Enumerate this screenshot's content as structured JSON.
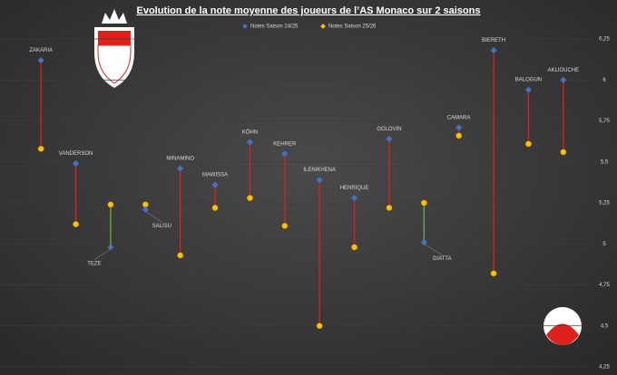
{
  "chart_data": {
    "type": "dumbbell",
    "title": "Evolution de la note moyenne des joueurs de l’AS Monaco sur 2 saisons",
    "categories": [
      "ZAKARIA",
      "VANDERSON",
      "TEZE",
      "SALISU",
      "MINAMINO",
      "MAWISSA",
      "KÖHN",
      "KEHRER",
      "ILENIKHENA",
      "HENRIQUE",
      "GOLOVIN",
      "DIATTA",
      "CAMARA",
      "BIERETH",
      "BALOGUN",
      "AKLIOUCHE"
    ],
    "series": [
      {
        "name": "Notes Saison 24/25",
        "color": "#4472c4",
        "values": [
          6.12,
          5.49,
          4.98,
          5.21,
          5.46,
          5.36,
          5.62,
          5.55,
          5.39,
          5.28,
          5.64,
          5.01,
          5.71,
          6.18,
          5.94,
          6.0
        ]
      },
      {
        "name": "Notes Saison 25/26",
        "color": "#ffc000",
        "values": [
          5.58,
          5.12,
          5.24,
          5.24,
          4.93,
          5.22,
          5.28,
          5.11,
          4.5,
          4.98,
          5.22,
          5.25,
          5.66,
          4.82,
          5.61,
          5.56
        ]
      }
    ],
    "rise_color": "#70ad47",
    "fall_color": "#e0201b",
    "ylim": [
      4.25,
      6.25
    ],
    "yticks": [
      {
        "value": 4.25,
        "label": "4,25"
      },
      {
        "value": 4.5,
        "label": "4,5"
      },
      {
        "value": 4.75,
        "label": "4,75"
      },
      {
        "value": 5,
        "label": "5"
      },
      {
        "value": 5.25,
        "label": "5,25"
      },
      {
        "value": 5.5,
        "label": "5,5"
      },
      {
        "value": 5.75,
        "label": "5,75"
      },
      {
        "value": 6,
        "label": "6"
      },
      {
        "value": 6.25,
        "label": "6,25"
      }
    ],
    "grid": true
  }
}
